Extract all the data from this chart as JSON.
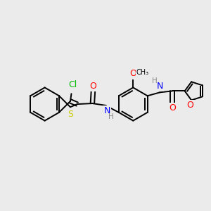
{
  "background_color": "#ebebeb",
  "bond_color": "#000000",
  "atom_colors": {
    "N": "#0000ff",
    "O": "#ff0000",
    "S": "#cccc00",
    "Cl": "#00bb00",
    "H": "#888888",
    "C": "#000000"
  },
  "figsize": [
    3.0,
    3.0
  ],
  "dpi": 100,
  "lw": 1.4,
  "fs": 8.5
}
